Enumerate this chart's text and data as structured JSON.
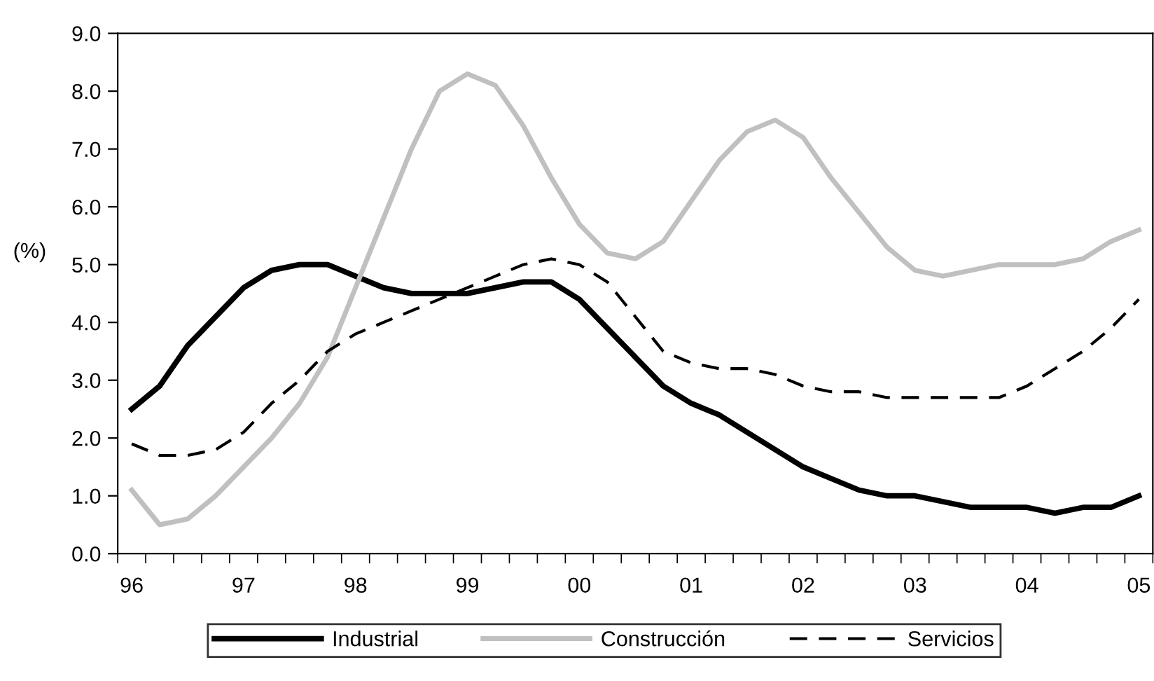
{
  "chart_data": {
    "type": "line",
    "ylabel": "(%)",
    "categories": [
      "96",
      null,
      null,
      null,
      "97",
      null,
      null,
      null,
      "98",
      null,
      null,
      null,
      "99",
      null,
      null,
      null,
      "00",
      null,
      null,
      null,
      "01",
      null,
      null,
      null,
      "02",
      null,
      null,
      null,
      "03",
      null,
      null,
      null,
      "04",
      null,
      null,
      null,
      "05"
    ],
    "series": [
      {
        "name": "Industrial",
        "color": "#000000",
        "line_style": "solid",
        "values": [
          2.5,
          2.9,
          3.6,
          4.1,
          4.6,
          4.9,
          5.0,
          5.0,
          4.8,
          4.6,
          4.5,
          4.5,
          4.5,
          4.6,
          4.7,
          4.7,
          4.4,
          3.9,
          3.4,
          2.9,
          2.6,
          2.4,
          2.1,
          1.8,
          1.5,
          1.3,
          1.1,
          1.0,
          1.0,
          0.9,
          0.8,
          0.8,
          0.8,
          0.7,
          0.8,
          0.8,
          1.0
        ]
      },
      {
        "name": "Construcción",
        "color": "#c0c0c0",
        "line_style": "solid",
        "values": [
          1.1,
          0.5,
          0.6,
          1.0,
          1.5,
          2.0,
          2.6,
          3.4,
          4.6,
          5.8,
          7.0,
          8.0,
          8.3,
          8.1,
          7.4,
          6.5,
          5.7,
          5.2,
          5.1,
          5.4,
          6.1,
          6.8,
          7.3,
          7.5,
          7.2,
          6.5,
          5.9,
          5.3,
          4.9,
          4.8,
          4.9,
          5.0,
          5.0,
          5.0,
          5.1,
          5.4,
          5.6
        ]
      },
      {
        "name": "Servicios",
        "color": "#000000",
        "line_style": "dashed",
        "values": [
          1.9,
          1.7,
          1.7,
          1.8,
          2.1,
          2.6,
          3.0,
          3.5,
          3.8,
          4.0,
          4.2,
          4.4,
          4.6,
          4.8,
          5.0,
          5.1,
          5.0,
          4.7,
          4.1,
          3.5,
          3.3,
          3.2,
          3.2,
          3.1,
          2.9,
          2.8,
          2.8,
          2.7,
          2.7,
          2.7,
          2.7,
          2.7,
          2.9,
          3.2,
          3.5,
          3.9,
          4.4
        ]
      }
    ],
    "ylim": [
      0,
      9
    ],
    "yticks": [
      {
        "value": 0,
        "label": "0.0"
      },
      {
        "value": 1,
        "label": "1.0"
      },
      {
        "value": 2,
        "label": "2.0"
      },
      {
        "value": 3,
        "label": "3.0"
      },
      {
        "value": 4,
        "label": "4.0"
      },
      {
        "value": 5,
        "label": "5.0"
      },
      {
        "value": 6,
        "label": "6.0"
      },
      {
        "value": 7,
        "label": "7.0"
      },
      {
        "value": 8,
        "label": "8.0"
      },
      {
        "value": 9,
        "label": "9.0"
      }
    ],
    "grid": false,
    "legend": "bottom",
    "marker": "none"
  }
}
